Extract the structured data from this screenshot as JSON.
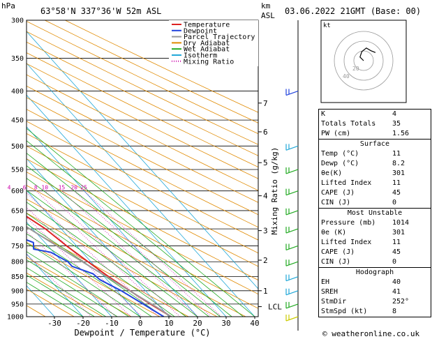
{
  "header": {
    "hpa_label": "hPa",
    "location": "63°58'N  337°36'W  52m  ASL",
    "km_label": "km",
    "asl_label": "ASL",
    "datetime": "03.06.2022  21GMT  (Base: 00)"
  },
  "chart_data": {
    "type": "skew-t log-p sounding",
    "title": "63°58'N 337°36'W 52m ASL",
    "xlabel": "Dewpoint / Temperature (°C)",
    "ylabel": "hPa",
    "mixing_ratio_axis_label": "Mixing Ratio (g/kg)",
    "x_ticks": [
      -30,
      -20,
      -10,
      0,
      10,
      20,
      30,
      40
    ],
    "pressure_levels": [
      300,
      350,
      400,
      450,
      500,
      550,
      600,
      650,
      700,
      750,
      800,
      850,
      900,
      950,
      1000
    ],
    "km_ticks": [
      {
        "label": "7",
        "p": 420
      },
      {
        "label": "6",
        "p": 472
      },
      {
        "label": "5",
        "p": 535
      },
      {
        "label": "4",
        "p": 612
      },
      {
        "label": "3",
        "p": 705
      },
      {
        "label": "2",
        "p": 795
      },
      {
        "label": "1",
        "p": 900
      },
      {
        "label": "LCL",
        "p": 960
      }
    ],
    "mixing_ratio_labels": [
      "1",
      "2",
      "3",
      "4",
      "6",
      "8",
      "10",
      "15",
      "20",
      "25"
    ],
    "legend": [
      {
        "name": "Temperature",
        "color": "#dd2222"
      },
      {
        "name": "Dewpoint",
        "color": "#2244dd"
      },
      {
        "name": "Parcel Trajectory",
        "color": "#999999"
      },
      {
        "name": "Dry Adiabat",
        "color": "#e08a00"
      },
      {
        "name": "Wet Adiabat",
        "color": "#22aa22"
      },
      {
        "name": "Isotherm",
        "color": "#22a8d8"
      },
      {
        "name": "Mixing Ratio",
        "color": "#cc00aa"
      }
    ],
    "series": [
      {
        "name": "Temperature",
        "points": [
          [
            1000,
            10.8
          ],
          [
            950,
            7.5
          ],
          [
            900,
            4.5
          ],
          [
            850,
            1.5
          ],
          [
            800,
            -1
          ],
          [
            750,
            -3.5
          ],
          [
            700,
            -5.5
          ],
          [
            650,
            -9.5
          ],
          [
            600,
            -14
          ],
          [
            550,
            -20
          ],
          [
            500,
            -25.5
          ],
          [
            450,
            -33
          ],
          [
            400,
            -41
          ]
        ]
      },
      {
        "name": "Dewpoint",
        "points": [
          [
            1000,
            8.2
          ],
          [
            950,
            5
          ],
          [
            900,
            1.5
          ],
          [
            860,
            -2.5
          ],
          [
            840,
            -3
          ],
          [
            815,
            -8
          ],
          [
            800,
            -8
          ],
          [
            770,
            -11
          ],
          [
            760,
            -16
          ],
          [
            740,
            -14
          ],
          [
            720,
            -18
          ],
          [
            700,
            -17
          ],
          [
            700,
            -24
          ],
          [
            690,
            -17.5
          ],
          [
            660,
            -18
          ],
          [
            650,
            -23
          ],
          [
            620,
            -27
          ],
          [
            600,
            -20
          ],
          [
            590,
            -15.5
          ],
          [
            580,
            -24
          ],
          [
            578,
            -48
          ],
          [
            570,
            -16
          ],
          [
            560,
            -25
          ],
          [
            530,
            -30
          ],
          [
            520,
            -31
          ],
          [
            510,
            -26.5
          ],
          [
            500,
            -30
          ],
          [
            480,
            -34
          ],
          [
            450,
            -40
          ],
          [
            400,
            -49
          ]
        ]
      },
      {
        "name": "Parcel Trajectory",
        "points": [
          [
            1000,
            10.8
          ],
          [
            960,
            8.6
          ],
          [
            900,
            4.4
          ],
          [
            800,
            -3
          ],
          [
            700,
            -11
          ],
          [
            600,
            -20
          ],
          [
            500,
            -31
          ],
          [
            400,
            -46
          ],
          [
            300,
            -65
          ]
        ]
      }
    ],
    "wind_barbs": [
      {
        "p": 400,
        "color": "#2244dd"
      },
      {
        "p": 500,
        "color": "#22a8d8"
      },
      {
        "p": 550,
        "color": "#22aa22"
      },
      {
        "p": 600,
        "color": "#22aa22"
      },
      {
        "p": 650,
        "color": "#22aa22"
      },
      {
        "p": 700,
        "color": "#22aa22"
      },
      {
        "p": 750,
        "color": "#22aa22"
      },
      {
        "p": 800,
        "color": "#22aa22"
      },
      {
        "p": 850,
        "color": "#22a8d8"
      },
      {
        "p": 900,
        "color": "#22a8d8"
      },
      {
        "p": 950,
        "color": "#22aa22"
      },
      {
        "p": 1000,
        "color": "#cccc00"
      }
    ],
    "hodograph": {
      "label": "kt",
      "ring_labels": [
        "20",
        "40"
      ],
      "points": [
        [
          0,
          0
        ],
        [
          -4,
          4
        ],
        [
          -2,
          10
        ],
        [
          3,
          14
        ],
        [
          8,
          11
        ],
        [
          13,
          9
        ]
      ]
    }
  },
  "indices": {
    "rows": [
      {
        "label": "K",
        "value": "4"
      },
      {
        "label": "Totals Totals",
        "value": "35"
      },
      {
        "label": "PW (cm)",
        "value": "1.56"
      }
    ],
    "surface": {
      "title": "Surface",
      "rows": [
        {
          "label": "Temp (°C)",
          "value": "11"
        },
        {
          "label": "Dewp (°C)",
          "value": "8.2"
        },
        {
          "label": "θe(K)",
          "value": "301"
        },
        {
          "label": "Lifted Index",
          "value": "11"
        },
        {
          "label": "CAPE (J)",
          "value": "45"
        },
        {
          "label": "CIN (J)",
          "value": "0"
        }
      ]
    },
    "most_unstable": {
      "title": "Most Unstable",
      "rows": [
        {
          "label": "Pressure (mb)",
          "value": "1014"
        },
        {
          "label": "θe (K)",
          "value": "301"
        },
        {
          "label": "Lifted Index",
          "value": "11"
        },
        {
          "label": "CAPE (J)",
          "value": "45"
        },
        {
          "label": "CIN (J)",
          "value": "0"
        }
      ]
    },
    "hodograph": {
      "title": "Hodograph",
      "rows": [
        {
          "label": "EH",
          "value": "40"
        },
        {
          "label": "SREH",
          "value": "41"
        },
        {
          "label": "StmDir",
          "value": "252°"
        },
        {
          "label": "StmSpd (kt)",
          "value": "8"
        }
      ]
    }
  },
  "footer": {
    "copyright": "© weatheronline.co.uk"
  }
}
